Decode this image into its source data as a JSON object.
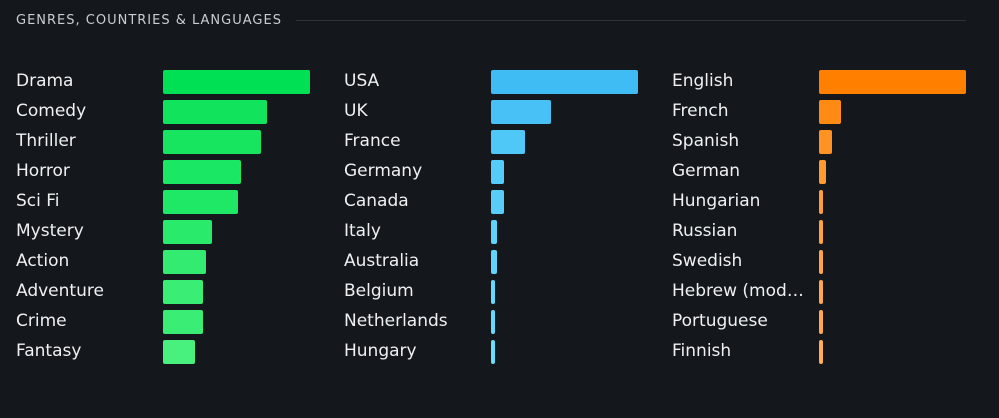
{
  "header": {
    "title": "GENRES, COUNTRIES & LANGUAGES"
  },
  "colors": {
    "genres": [
      "#00e054",
      "#11e45c",
      "#17e560",
      "#1ae763",
      "#1ee866",
      "#2aea6b",
      "#33eb70",
      "#3aee75",
      "#3aee75",
      "#48f07e"
    ],
    "countries": [
      "#40bcf4",
      "#48c2f6",
      "#4fc7f7",
      "#55cbf8",
      "#58cdf8",
      "#5ed2f9",
      "#62d4fa",
      "#66d8fb",
      "#66d8fb",
      "#6cdcfc"
    ],
    "languages": [
      "#ff8000",
      "#ff8a14",
      "#ff9222",
      "#ff9a30",
      "#ff9e38",
      "#ffa242",
      "#ffa447",
      "#ffa84e",
      "#ffa84e",
      "#ffad58"
    ]
  },
  "chart_data": [
    {
      "type": "bar",
      "orientation": "horizontal",
      "categories": [
        "Drama",
        "Comedy",
        "Thriller",
        "Horror",
        "Sci Fi",
        "Mystery",
        "Action",
        "Adventure",
        "Crime",
        "Fantasy"
      ],
      "values": [
        100,
        71,
        67,
        53,
        51,
        33,
        29,
        27,
        27,
        22
      ],
      "grid": false
    },
    {
      "type": "bar",
      "orientation": "horizontal",
      "categories": [
        "USA",
        "UK",
        "France",
        "Germany",
        "Canada",
        "Italy",
        "Australia",
        "Belgium",
        "Netherlands",
        "Hungary"
      ],
      "values": [
        100,
        41,
        23,
        9,
        9,
        4,
        4,
        3,
        3,
        3
      ],
      "grid": false
    },
    {
      "type": "bar",
      "orientation": "horizontal",
      "categories": [
        "English",
        "French",
        "Spanish",
        "German",
        "Hungarian",
        "Russian",
        "Swedish",
        "Hebrew (mode…",
        "Portuguese",
        "Finnish"
      ],
      "values": [
        100,
        15,
        9,
        5,
        3,
        3,
        3,
        3,
        3,
        3
      ],
      "grid": false
    }
  ]
}
